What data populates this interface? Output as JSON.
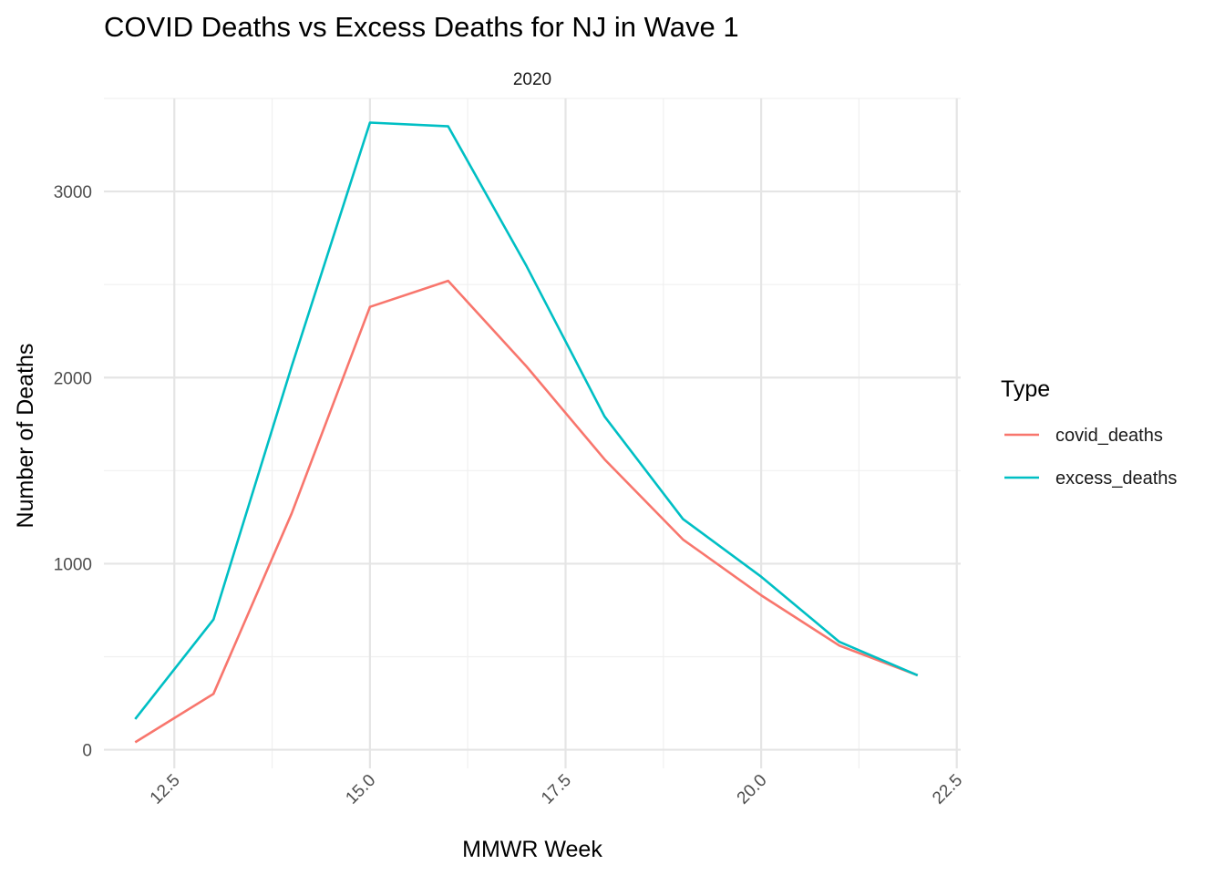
{
  "chart_data": {
    "type": "line",
    "title": "COVID Deaths vs Excess Deaths for NJ in Wave 1",
    "facet_label": "2020",
    "xlabel": "MMWR Week",
    "ylabel": "Number of Deaths",
    "x": [
      12,
      13,
      14,
      15,
      16,
      17,
      18,
      19,
      20,
      21,
      22
    ],
    "xlim": [
      11.6,
      22.55
    ],
    "ylim": [
      -100,
      3500
    ],
    "x_ticks": [
      12.5,
      15.0,
      17.5,
      20.0,
      22.5
    ],
    "x_tick_labels": [
      "12.5",
      "15.0",
      "17.5",
      "20.0",
      "22.5"
    ],
    "y_ticks": [
      0,
      1000,
      2000,
      3000
    ],
    "y_tick_labels": [
      "0",
      "1000",
      "2000",
      "3000"
    ],
    "grid": true,
    "legend": {
      "title": "Type",
      "position": "right"
    },
    "series": [
      {
        "name": "covid_deaths",
        "color": "#F8766D",
        "values": [
          40,
          300,
          1270,
          2380,
          2520,
          2060,
          1560,
          1130,
          830,
          560,
          400
        ]
      },
      {
        "name": "excess_deaths",
        "color": "#00BFC4",
        "values": [
          165,
          700,
          2060,
          3370,
          3350,
          2600,
          1790,
          1240,
          930,
          580,
          400
        ]
      }
    ]
  }
}
